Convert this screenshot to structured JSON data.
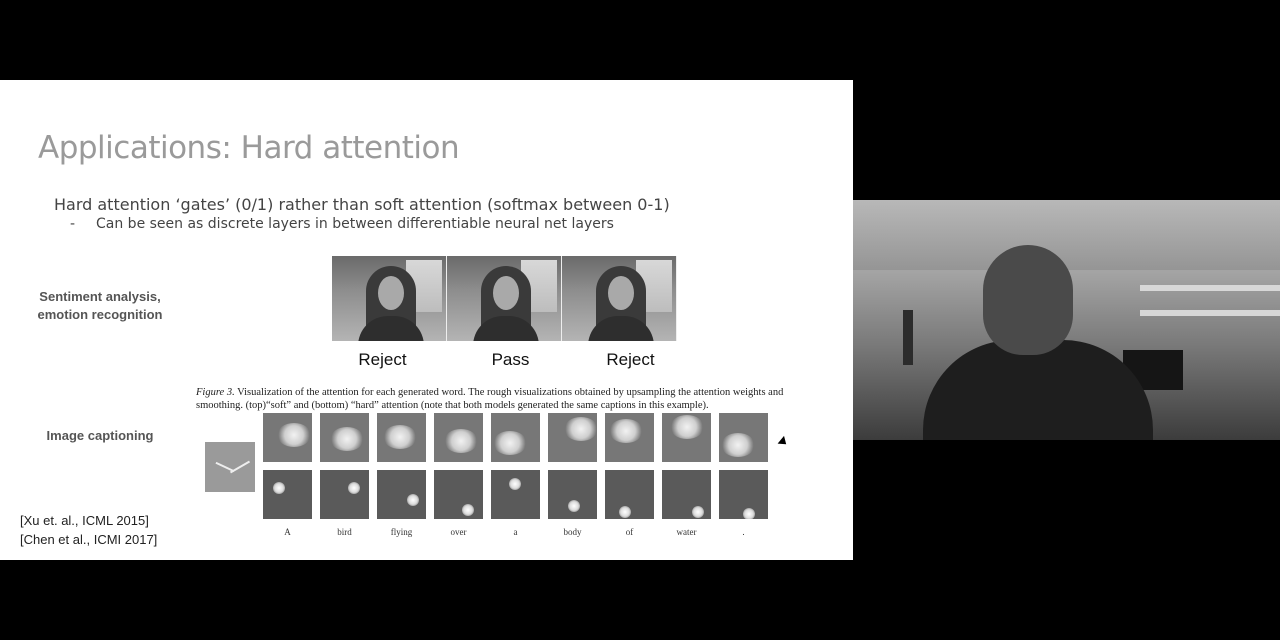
{
  "slide": {
    "title": "Applications: Hard attention",
    "bullet": "Hard attention ‘gates’ (0/1) rather than soft attention (softmax between 0-1)",
    "sub_dash": "-",
    "sub_bullet": "Can be seen as discrete layers in between differentiable neural net layers",
    "sentiment_label_line1": "Sentiment analysis,",
    "sentiment_label_line2": "emotion recognition",
    "decisions": [
      "Reject",
      "Pass",
      "Reject"
    ],
    "figure_caption_prefix": "Figure 3.",
    "figure_caption_text": "Visualization of the attention for each generated word. The rough visualizations obtained by upsampling the attention weights and smoothing. (top)“soft” and (bottom) “hard” attention (note that both models generated the same captions in this example).",
    "caption_label": "Image captioning",
    "words": [
      "A",
      "bird",
      "flying",
      "over",
      "a",
      "body",
      "of",
      "water",
      "."
    ],
    "refs": [
      "[Xu et. al., ICML 2015]",
      "[Chen et al., ICMI 2017]"
    ]
  }
}
